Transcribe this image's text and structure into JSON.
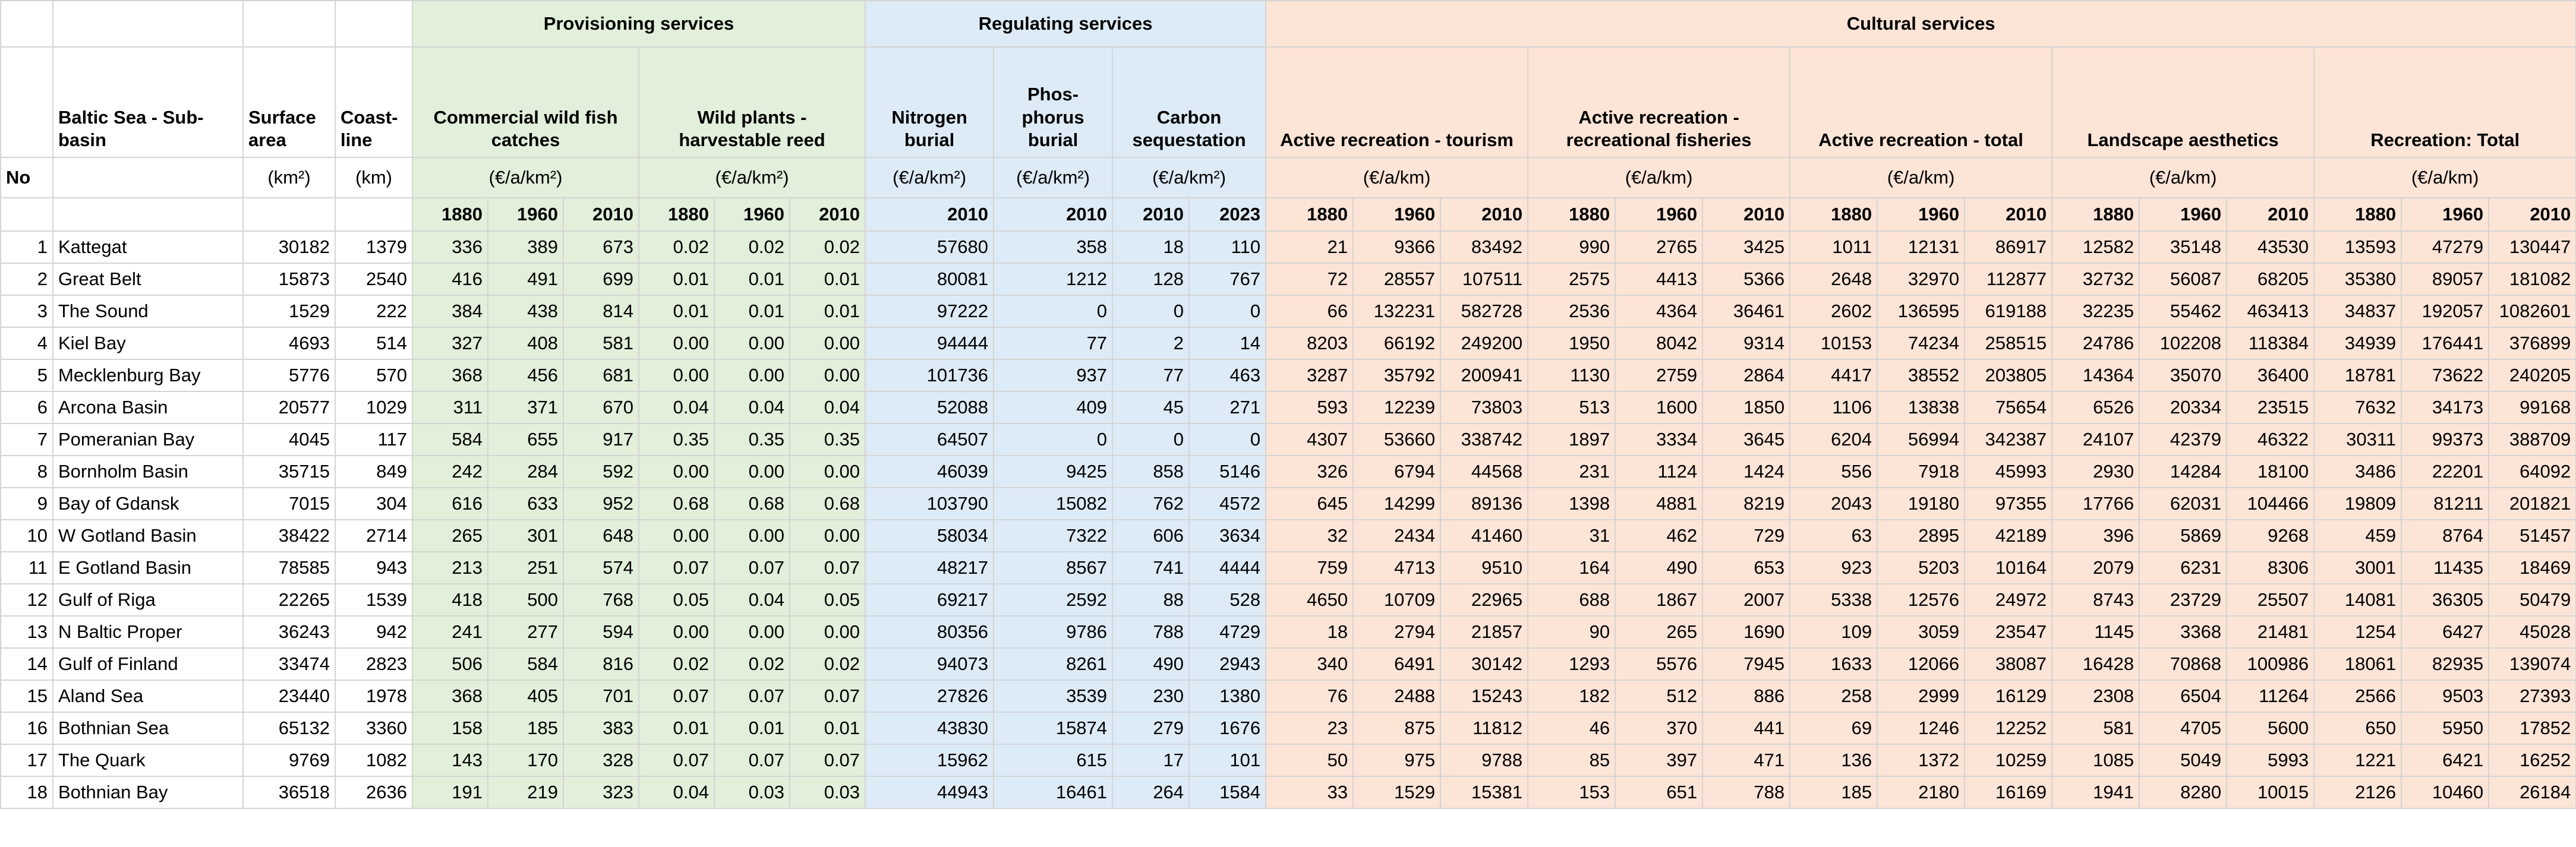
{
  "table": {
    "lead_columns": [
      {
        "label": "No"
      },
      {
        "name": "Baltic Sea - Sub-basin"
      },
      {
        "name": "Surface area",
        "unit": "(km²)"
      },
      {
        "name": "Coast-line",
        "unit": "(km)"
      }
    ],
    "groups": [
      {
        "label": "Provisioning services",
        "columns": [
          {
            "name": "Commercial wild fish catches",
            "unit": "(€/a/km²)",
            "years": [
              1880,
              1960,
              2010
            ]
          },
          {
            "name": "Wild plants - harvestable reed",
            "unit": "(€/a/km²)",
            "years": [
              1880,
              1960,
              2010
            ]
          }
        ]
      },
      {
        "label": "Regulating services",
        "columns": [
          {
            "name": "Nitrogen burial",
            "unit": "(€/a/km²)",
            "years": [
              2010
            ]
          },
          {
            "name": "Phos-phorus burial",
            "unit": "(€/a/km²)",
            "years": [
              2010
            ]
          },
          {
            "name": "Carbon sequestation",
            "unit": "(€/a/km²)",
            "years": [
              2010,
              2023
            ]
          }
        ]
      },
      {
        "label": "Cultural services",
        "columns": [
          {
            "name": "Active recreation - tourism",
            "unit": "(€/a/km)",
            "years": [
              1880,
              1960,
              2010
            ]
          },
          {
            "name": "Active recreation - recreational fisheries",
            "unit": "(€/a/km)",
            "years": [
              1880,
              1960,
              2010
            ]
          },
          {
            "name": "Active recreation - total",
            "unit": "(€/a/km)",
            "years": [
              1880,
              1960,
              2010
            ]
          },
          {
            "name": "Landscape aesthetics",
            "unit": "(€/a/km)",
            "years": [
              1880,
              1960,
              2010
            ]
          },
          {
            "name": "Recreation: Total",
            "unit": "(€/a/km)",
            "years": [
              1880,
              1960,
              2010
            ]
          }
        ]
      }
    ],
    "rows": [
      [
        1,
        "Kattegat",
        30182,
        1379,
        336,
        389,
        673,
        "0.02",
        "0.02",
        "0.02",
        57680,
        358,
        18,
        110,
        21,
        9366,
        83492,
        990,
        2765,
        3425,
        1011,
        12131,
        86917,
        12582,
        35148,
        43530,
        13593,
        47279,
        130447
      ],
      [
        2,
        "Great Belt",
        15873,
        2540,
        416,
        491,
        699,
        "0.01",
        "0.01",
        "0.01",
        80081,
        1212,
        128,
        767,
        72,
        28557,
        107511,
        2575,
        4413,
        5366,
        2648,
        32970,
        112877,
        32732,
        56087,
        68205,
        35380,
        89057,
        181082
      ],
      [
        3,
        "The Sound",
        1529,
        222,
        384,
        438,
        814,
        "0.01",
        "0.01",
        "0.01",
        97222,
        0,
        0,
        0,
        66,
        132231,
        582728,
        2536,
        4364,
        36461,
        2602,
        136595,
        619188,
        32235,
        55462,
        463413,
        34837,
        192057,
        1082601
      ],
      [
        4,
        "Kiel Bay",
        4693,
        514,
        327,
        408,
        581,
        "0.00",
        "0.00",
        "0.00",
        94444,
        77,
        2,
        14,
        8203,
        66192,
        249200,
        1950,
        8042,
        9314,
        10153,
        74234,
        258515,
        24786,
        102208,
        118384,
        34939,
        176441,
        376899
      ],
      [
        5,
        "Mecklenburg Bay",
        5776,
        570,
        368,
        456,
        681,
        "0.00",
        "0.00",
        "0.00",
        101736,
        937,
        77,
        463,
        3287,
        35792,
        200941,
        1130,
        2759,
        2864,
        4417,
        38552,
        203805,
        14364,
        35070,
        36400,
        18781,
        73622,
        240205
      ],
      [
        6,
        "Arcona Basin",
        20577,
        1029,
        311,
        371,
        670,
        "0.04",
        "0.04",
        "0.04",
        52088,
        409,
        45,
        271,
        593,
        12239,
        73803,
        513,
        1600,
        1850,
        1106,
        13838,
        75654,
        6526,
        20334,
        23515,
        7632,
        34173,
        99168
      ],
      [
        7,
        "Pomeranian Bay",
        4045,
        117,
        584,
        655,
        917,
        "0.35",
        "0.35",
        "0.35",
        64507,
        0,
        0,
        0,
        4307,
        53660,
        338742,
        1897,
        3334,
        3645,
        6204,
        56994,
        342387,
        24107,
        42379,
        46322,
        30311,
        99373,
        388709
      ],
      [
        8,
        "Bornholm Basin",
        35715,
        849,
        242,
        284,
        592,
        "0.00",
        "0.00",
        "0.00",
        46039,
        9425,
        858,
        5146,
        326,
        6794,
        44568,
        231,
        1124,
        1424,
        556,
        7918,
        45993,
        2930,
        14284,
        18100,
        3486,
        22201,
        64092
      ],
      [
        9,
        "Bay of Gdansk",
        7015,
        304,
        616,
        633,
        952,
        "0.68",
        "0.68",
        "0.68",
        103790,
        15082,
        762,
        4572,
        645,
        14299,
        89136,
        1398,
        4881,
        8219,
        2043,
        19180,
        97355,
        17766,
        62031,
        104466,
        19809,
        81211,
        201821
      ],
      [
        10,
        "W Gotland Basin",
        38422,
        2714,
        265,
        301,
        648,
        "0.00",
        "0.00",
        "0.00",
        58034,
        7322,
        606,
        3634,
        32,
        2434,
        41460,
        31,
        462,
        729,
        63,
        2895,
        42189,
        396,
        5869,
        9268,
        459,
        8764,
        51457
      ],
      [
        11,
        "E Gotland Basin",
        78585,
        943,
        213,
        251,
        574,
        "0.07",
        "0.07",
        "0.07",
        48217,
        8567,
        741,
        4444,
        759,
        4713,
        9510,
        164,
        490,
        653,
        923,
        5203,
        10164,
        2079,
        6231,
        8306,
        3001,
        11435,
        18469
      ],
      [
        12,
        "Gulf of Riga",
        22265,
        1539,
        418,
        500,
        768,
        "0.05",
        "0.04",
        "0.05",
        69217,
        2592,
        88,
        528,
        4650,
        10709,
        22965,
        688,
        1867,
        2007,
        5338,
        12576,
        24972,
        8743,
        23729,
        25507,
        14081,
        36305,
        50479
      ],
      [
        13,
        "N Baltic Proper",
        36243,
        942,
        241,
        277,
        594,
        "0.00",
        "0.00",
        "0.00",
        80356,
        9786,
        788,
        4729,
        18,
        2794,
        21857,
        90,
        265,
        1690,
        109,
        3059,
        23547,
        1145,
        3368,
        21481,
        1254,
        6427,
        45028
      ],
      [
        14,
        "Gulf of Finland",
        33474,
        2823,
        506,
        584,
        816,
        "0.02",
        "0.02",
        "0.02",
        94073,
        8261,
        490,
        2943,
        340,
        6491,
        30142,
        1293,
        5576,
        7945,
        1633,
        12066,
        38087,
        16428,
        70868,
        100986,
        18061,
        82935,
        139074
      ],
      [
        15,
        "Aland Sea",
        23440,
        1978,
        368,
        405,
        701,
        "0.07",
        "0.07",
        "0.07",
        27826,
        3539,
        230,
        1380,
        76,
        2488,
        15243,
        182,
        512,
        886,
        258,
        2999,
        16129,
        2308,
        6504,
        11264,
        2566,
        9503,
        27393
      ],
      [
        16,
        "Bothnian Sea",
        65132,
        3360,
        158,
        185,
        383,
        "0.01",
        "0.01",
        "0.01",
        43830,
        15874,
        279,
        1676,
        23,
        875,
        11812,
        46,
        370,
        441,
        69,
        1246,
        12252,
        581,
        4705,
        5600,
        650,
        5950,
        17852
      ],
      [
        17,
        "The Quark",
        9769,
        1082,
        143,
        170,
        328,
        "0.07",
        "0.07",
        "0.07",
        15962,
        615,
        17,
        101,
        50,
        975,
        9788,
        85,
        397,
        471,
        136,
        1372,
        10259,
        1085,
        5049,
        5993,
        1221,
        6421,
        16252
      ],
      [
        18,
        "Bothnian Bay",
        36518,
        2636,
        191,
        219,
        323,
        "0.04",
        "0.03",
        "0.03",
        44943,
        16461,
        264,
        1584,
        33,
        1529,
        15381,
        153,
        651,
        788,
        185,
        2180,
        16169,
        1941,
        8280,
        10015,
        2126,
        10460,
        26184
      ]
    ]
  }
}
